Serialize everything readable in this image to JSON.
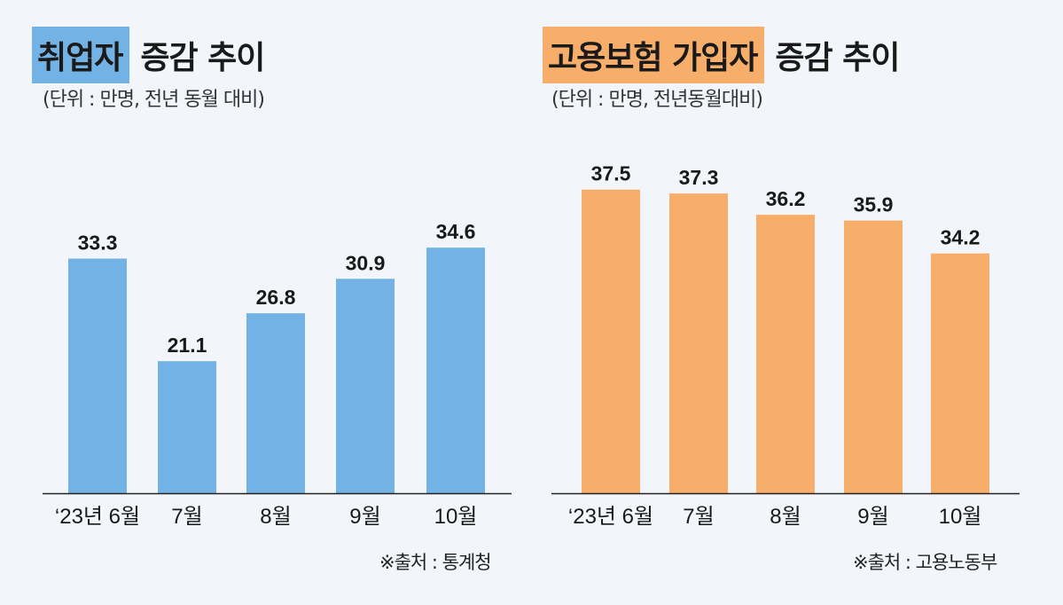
{
  "chart_data": [
    {
      "type": "bar",
      "title_highlight": "취업자",
      "title_rest": "증감 추이",
      "subtitle": "(단위 : 만명, 전년 동월 대비)",
      "categories": [
        "‘23년 6월",
        "7월",
        "8월",
        "9월",
        "10월"
      ],
      "values": [
        33.3,
        21.1,
        26.8,
        30.9,
        34.6
      ],
      "value_labels": [
        "33.3",
        "21.1",
        "26.8",
        "30.9",
        "34.6"
      ],
      "source": "※출처 : 통계청",
      "ylim": [
        5.4,
        40
      ],
      "color": "#72b2e4"
    },
    {
      "type": "bar",
      "title_highlight": "고용보험 가입자",
      "title_rest": "증감 추이",
      "subtitle": "(단위 : 만명, 전년동월대비)",
      "categories": [
        "‘23년 6월",
        "7월",
        "8월",
        "9월",
        "10월"
      ],
      "values": [
        37.5,
        37.3,
        36.2,
        35.9,
        34.2
      ],
      "value_labels": [
        "37.5",
        "37.3",
        "36.2",
        "35.9",
        "34.2"
      ],
      "source": "※출처 : 고용노동부",
      "ylim": [
        21.8,
        40
      ],
      "color": "#f6ae6a"
    }
  ]
}
